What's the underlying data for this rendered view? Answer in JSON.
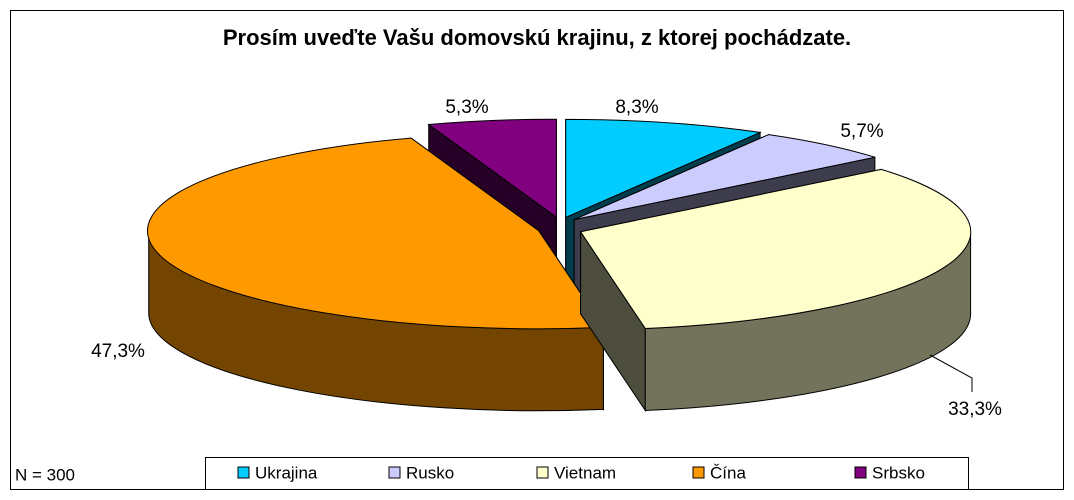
{
  "chart_data": {
    "type": "pie3d",
    "title": "Prosím uveďte Vašu domovskú krajinu, z ktorej pochádzate.",
    "categories": [
      "Ukrajina",
      "Rusko",
      "Vietnam",
      "Čína",
      "Srbsko"
    ],
    "values": [
      8.3,
      5.7,
      33.3,
      47.3,
      5.3
    ],
    "value_labels": [
      "8,3%",
      "5,7%",
      "33,3%",
      "47,3%",
      "5,3%"
    ],
    "colors": [
      "#00ccff",
      "#ccccff",
      "#ffffcc",
      "#ff9900",
      "#800080"
    ],
    "annotation": "N = 300",
    "legend": "bottom"
  }
}
